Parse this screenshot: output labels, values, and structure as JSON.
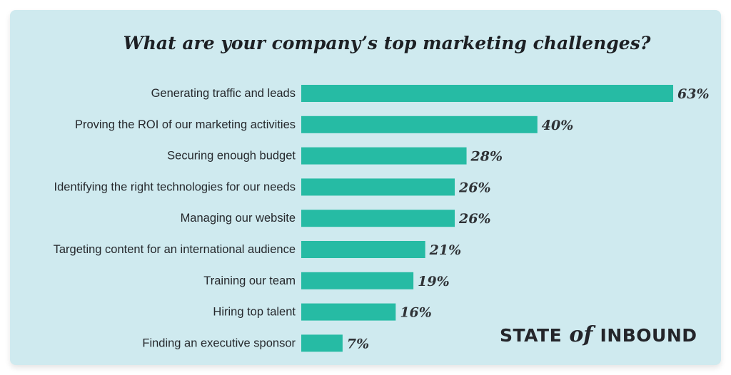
{
  "chart_data": {
    "type": "bar",
    "orientation": "horizontal",
    "title": "What are your company’s top marketing challenges?",
    "categories": [
      "Generating traffic and leads",
      "Proving the ROI of our marketing activities",
      "Securing enough budget",
      "Identifying the right technologies for our needs",
      "Managing our website",
      "Targeting content for an international audience",
      "Training our team",
      "Hiring top talent",
      "Finding an executive sponsor"
    ],
    "values": [
      63,
      40,
      28,
      26,
      26,
      21,
      19,
      16,
      7
    ],
    "value_labels": [
      "63%",
      "40%",
      "28%",
      "26%",
      "26%",
      "21%",
      "19%",
      "16%",
      "7%"
    ],
    "xlim": [
      0,
      63
    ],
    "grid": false,
    "legend": "none",
    "bar_color": "#26bba4"
  },
  "colors": {
    "background": "#cfeaef",
    "bar": "#26bba4",
    "text": "#25282c"
  },
  "brand": {
    "pre": "STATE",
    "of": "of",
    "post": "INBOUND"
  }
}
